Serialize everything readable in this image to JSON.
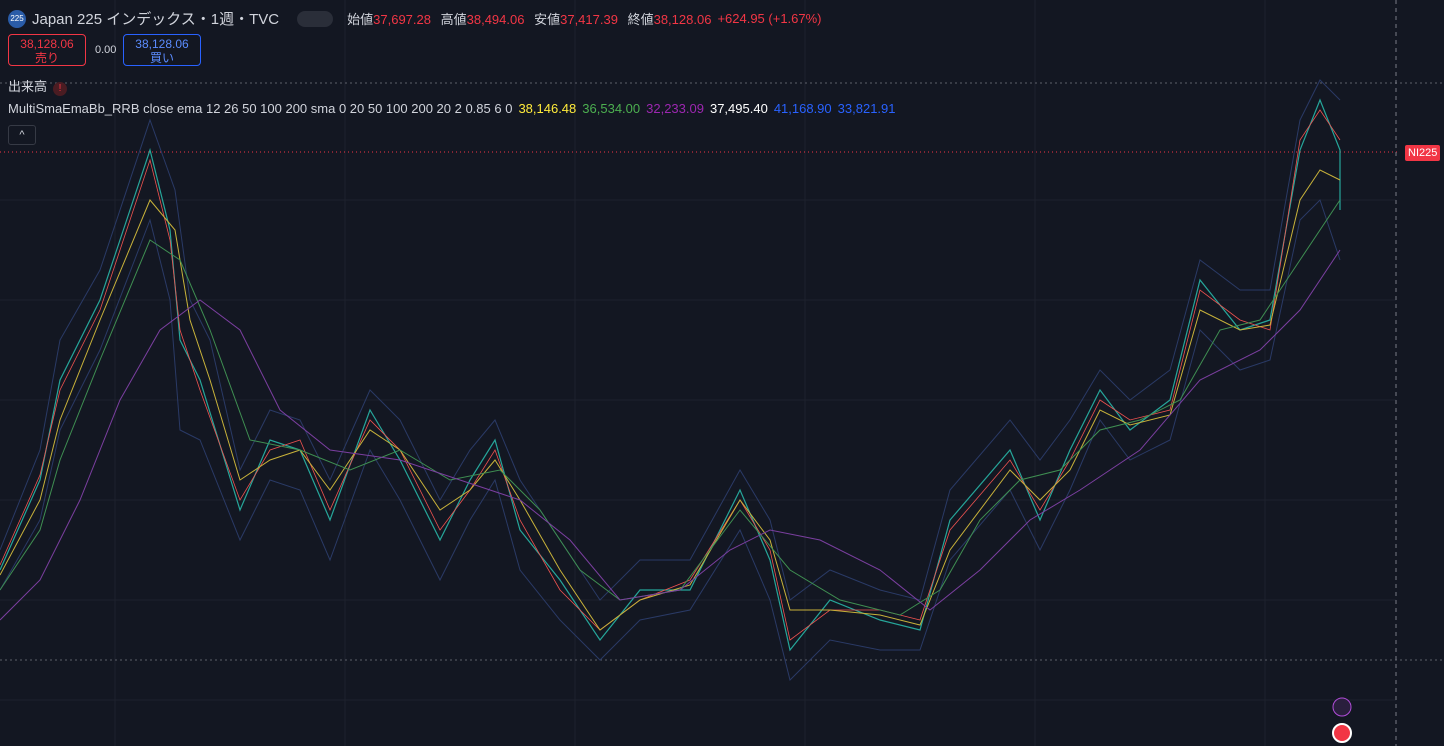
{
  "header": {
    "badge": "225",
    "title": "Japan 225 インデックス・1週・TVC",
    "ohlc": [
      {
        "label": "始値",
        "value": "37,697.28"
      },
      {
        "label": "高値",
        "value": "38,494.06"
      },
      {
        "label": "安値",
        "value": "37,417.39"
      },
      {
        "label": "終値",
        "value": "38,128.06"
      }
    ],
    "change": "+624.95 (+1.67%)"
  },
  "trade": {
    "sell_price": "38,128.06",
    "sell_label": "売り",
    "spread": "0.00",
    "buy_price": "38,128.06",
    "buy_label": "買い"
  },
  "volume_label": "出来高",
  "indicator": {
    "name": "MultiSmaEmaBb_RRB close ema 12 26 50 100 200 sma 0 20 50 100 200 20 2 0.85 6 0",
    "values": [
      {
        "text": "38,146.48",
        "color": "#ffeb3b"
      },
      {
        "text": "36,534.00",
        "color": "#4caf50"
      },
      {
        "text": "32,233.09",
        "color": "#9c27b0"
      },
      {
        "text": "37,495.40",
        "color": "#ffffff"
      },
      {
        "text": "41,168.90",
        "color": "#2962ff"
      },
      {
        "text": "33,821.91",
        "color": "#2962ff"
      }
    ]
  },
  "price_tag": "NI225"
}
